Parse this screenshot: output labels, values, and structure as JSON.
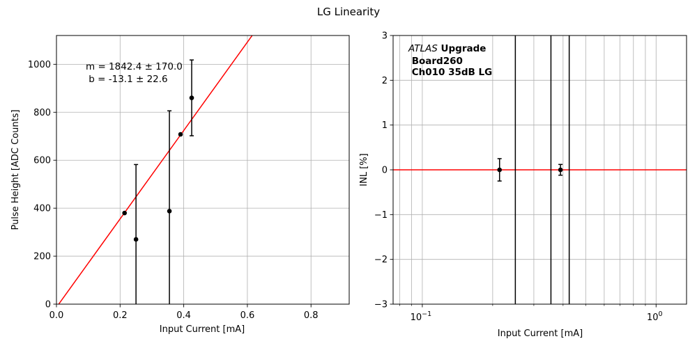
{
  "figure": {
    "suptitle": "LG Linearity"
  },
  "chart_data": [
    {
      "type": "scatter",
      "title": "",
      "xlabel": "Input Current [mA]",
      "ylabel": "Pulse Height [ADC Counts]",
      "xlim": [
        0,
        0.92
      ],
      "ylim": [
        0,
        1120
      ],
      "xscale": "linear",
      "grid": true,
      "xticks": [
        0.0,
        0.2,
        0.4,
        0.6,
        0.8
      ],
      "xtick_labels": [
        "0.0",
        "0.2",
        "0.4",
        "0.6",
        "0.8"
      ],
      "yticks": [
        0,
        200,
        400,
        600,
        800,
        1000
      ],
      "ytick_labels": [
        "0",
        "200",
        "400",
        "600",
        "800",
        "1000"
      ],
      "points": [
        {
          "x": 0.214,
          "y": 380,
          "yerr": 0
        },
        {
          "x": 0.25,
          "y": 270,
          "yerr": 312
        },
        {
          "x": 0.355,
          "y": 388,
          "yerr": 418
        },
        {
          "x": 0.39,
          "y": 708,
          "yerr": 0
        },
        {
          "x": 0.425,
          "y": 860,
          "yerr": 158
        }
      ],
      "fit": {
        "slope": 1842.4,
        "intercept": -13.1,
        "color": "#ff0000"
      },
      "annotation": [
        "m = 1842.4 ± 170.0",
        " b = -13.1 ± 22.6"
      ],
      "marker_color": "#000000"
    },
    {
      "type": "scatter",
      "title": "",
      "xlabel": "Input Current [mA]",
      "ylabel": "INL [%]",
      "xlim": [
        0.075,
        1.35
      ],
      "ylim": [
        -3,
        3
      ],
      "xscale": "log",
      "grid": true,
      "xticks_major": [
        0.1,
        1
      ],
      "xtick_labels": [
        "10",
        "10"
      ],
      "xtick_exponents": [
        "−1",
        "0"
      ],
      "xticks_minor": [
        0.08,
        0.09,
        0.2,
        0.3,
        0.4,
        0.5,
        0.6,
        0.7,
        0.8,
        0.9
      ],
      "yticks": [
        -3,
        -2,
        -1,
        0,
        1,
        2,
        3
      ],
      "ytick_labels": [
        "−3",
        "−2",
        "−1",
        "0",
        "1",
        "2",
        "3"
      ],
      "points": [
        {
          "x": 0.214,
          "y": 0,
          "yerr": 0.25
        },
        {
          "x": 0.39,
          "y": 0,
          "yerr": 0.12
        }
      ],
      "vertical_bars": [
        0.25,
        0.355,
        0.425
      ],
      "reference_line": {
        "y": 0,
        "color": "#ff0000"
      },
      "annotation": {
        "experiment": "ATLAS",
        "tag": " Upgrade",
        "lines": [
          " Board260",
          " Ch010 35dB LG"
        ]
      },
      "marker_color": "#000000"
    }
  ]
}
